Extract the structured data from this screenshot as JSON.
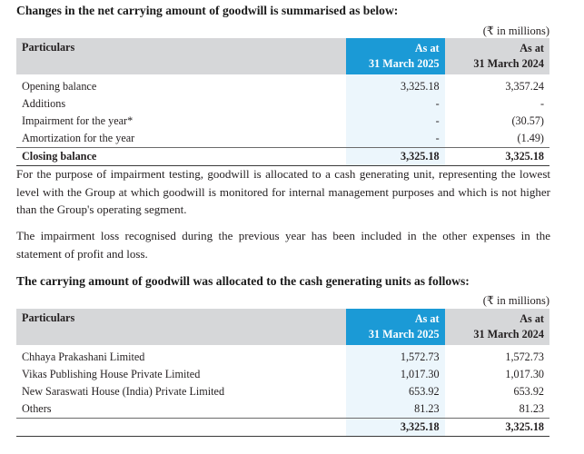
{
  "section1": {
    "title": "Changes in the net carrying amount of goodwill is summarised as below:",
    "units": "(₹ in millions)",
    "col_particulars": "Particulars",
    "col_2025": [
      "As at",
      "31 March 2025"
    ],
    "col_2024": [
      "As at",
      "31 March 2024"
    ],
    "rows": [
      {
        "label": "Opening balance",
        "v2025": "3,325.18",
        "v2024": "3,357.24"
      },
      {
        "label": "Additions",
        "v2025": "-",
        "v2024": "-"
      },
      {
        "label": "Impairment for the year*",
        "v2025": "-",
        "v2024": "(30.57)"
      },
      {
        "label": "Amortization for the year",
        "v2025": "-",
        "v2024": "(1.49)"
      }
    ],
    "total": {
      "label": "Closing balance",
      "v2025": "3,325.18",
      "v2024": "3,325.18"
    }
  },
  "para1": "For the purpose of impairment testing, goodwill is allocated to a cash generating unit, representing the lowest level with the Group at which goodwill is monitored for internal management purposes and which is not higher than the Group's operating segment.",
  "para2": "The impairment loss recognised during the previous year has been included in the other expenses in the statement of profit and loss.",
  "section2": {
    "title": "The carrying amount of goodwill was allocated to the cash generating units as follows:",
    "units": "(₹ in millions)",
    "col_particulars": "Particulars",
    "col_2025": [
      "As at",
      "31 March 2025"
    ],
    "col_2024": [
      "As at",
      "31 March 2024"
    ],
    "rows": [
      {
        "label": "Chhaya Prakashani Limited",
        "v2025": "1,572.73",
        "v2024": "1,572.73"
      },
      {
        "label": "Vikas Publishing House Private Limited",
        "v2025": "1,017.30",
        "v2024": "1,017.30"
      },
      {
        "label": "New Saraswati House (India) Private Limited",
        "v2025": "653.92",
        "v2024": "653.92"
      },
      {
        "label": "Others",
        "v2025": "81.23",
        "v2024": "81.23"
      }
    ],
    "total": {
      "label": "",
      "v2025": "3,325.18",
      "v2024": "3,325.18"
    }
  }
}
